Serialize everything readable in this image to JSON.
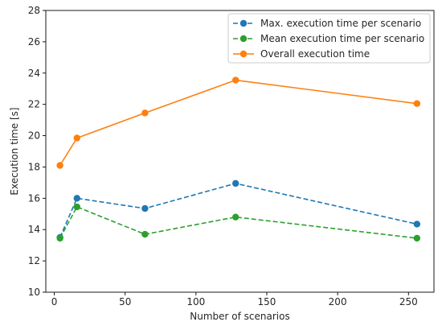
{
  "chart_data": {
    "type": "line",
    "title": "",
    "xlabel": "Number of scenarios",
    "ylabel": "Execution time [s]",
    "xlim": [
      -6,
      268
    ],
    "ylim": [
      10,
      28
    ],
    "xticks": [
      0,
      50,
      100,
      150,
      200,
      250
    ],
    "xtick_labels": [
      "0",
      "50",
      "100",
      "150",
      "200",
      "250"
    ],
    "yticks": [
      10,
      12,
      14,
      16,
      18,
      20,
      22,
      24,
      26,
      28
    ],
    "ytick_labels": [
      "10",
      "12",
      "14",
      "16",
      "18",
      "20",
      "22",
      "24",
      "26",
      "28"
    ],
    "grid": false,
    "legend_position": "top-right",
    "x": [
      4,
      16,
      64,
      128,
      256
    ],
    "series": [
      {
        "name": "Max. execution time per scenario",
        "color": "#1f77b4",
        "linestyle": "dashed",
        "values": [
          13.5,
          16.0,
          15.35,
          16.95,
          14.35
        ]
      },
      {
        "name": "Mean execution time per scenario",
        "color": "#2ca02c",
        "linestyle": "dashed",
        "values": [
          13.45,
          15.45,
          13.7,
          14.8,
          13.45
        ]
      },
      {
        "name": "Overall execution time",
        "color": "#ff7f0e",
        "linestyle": "solid",
        "values": [
          18.1,
          19.85,
          21.45,
          23.55,
          22.05
        ]
      }
    ]
  }
}
